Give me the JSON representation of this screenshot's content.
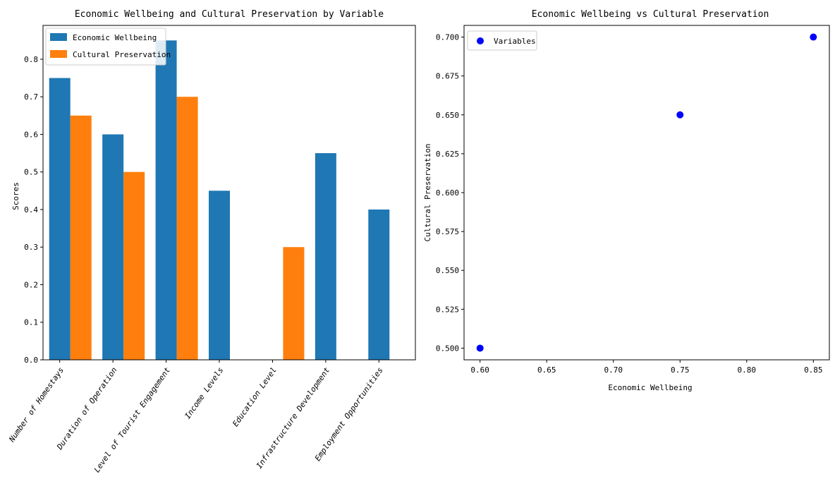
{
  "chart_data": [
    {
      "type": "bar",
      "title": "Economic Wellbeing and Cultural Preservation by Variable",
      "xlabel": "",
      "ylabel": "Scores",
      "ylim": [
        0,
        0.89
      ],
      "yticks": [
        "0.0",
        "0.1",
        "0.2",
        "0.3",
        "0.4",
        "0.5",
        "0.6",
        "0.7",
        "0.8"
      ],
      "categories": [
        "Number of Homestays",
        "Duration of Operation",
        "Level of Tourist Engagement",
        "Income Levels",
        "Education Level",
        "Infrastructure Development",
        "Employment Opportunities"
      ],
      "legend_position": "upper-left",
      "series": [
        {
          "name": "Economic Wellbeing",
          "color": "#1f77b4",
          "values": [
            0.75,
            0.6,
            0.85,
            0.45,
            null,
            0.55,
            0.4
          ]
        },
        {
          "name": "Cultural Preservation",
          "color": "#ff7f0e",
          "values": [
            0.65,
            0.5,
            0.7,
            null,
            0.3,
            null,
            null
          ]
        }
      ]
    },
    {
      "type": "scatter",
      "title": "Economic Wellbeing vs Cultural Preservation",
      "xlabel": "Economic Wellbeing",
      "ylabel": "Cultural Preservation",
      "xlim": [
        0.588,
        0.862
      ],
      "ylim": [
        0.4925,
        0.7075
      ],
      "xticks": [
        "0.60",
        "0.65",
        "0.70",
        "0.75",
        "0.80",
        "0.85"
      ],
      "yticks": [
        "0.500",
        "0.525",
        "0.550",
        "0.575",
        "0.600",
        "0.625",
        "0.650",
        "0.675",
        "0.700"
      ],
      "legend_position": "upper-left",
      "series": [
        {
          "name": "Variables",
          "color": "#0000ff",
          "points": [
            [
              0.6,
              0.5
            ],
            [
              0.75,
              0.65
            ],
            [
              0.85,
              0.7
            ]
          ]
        }
      ]
    }
  ]
}
